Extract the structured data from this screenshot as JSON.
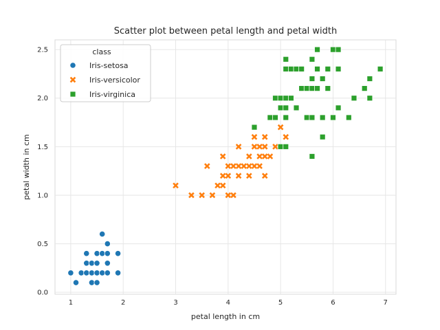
{
  "chart_data": {
    "type": "scatter",
    "title": "Scatter plot between petal length and petal width",
    "xlabel": "petal length in cm",
    "ylabel": "petal width in cm",
    "xlim": [
      0.7,
      7.2
    ],
    "ylim": [
      -0.02,
      2.6
    ],
    "xticks": [
      "1",
      "2",
      "3",
      "4",
      "5",
      "6",
      "7"
    ],
    "yticks": [
      "0.0",
      "0.5",
      "1.0",
      "1.5",
      "2.0",
      "2.5"
    ],
    "grid": true,
    "legend": {
      "title": "class",
      "placement": "top-left"
    },
    "series": [
      {
        "name": "Iris-setosa",
        "marker": "circle",
        "color": "#1f77b4",
        "points": [
          [
            1.0,
            0.2
          ],
          [
            1.1,
            0.1
          ],
          [
            1.2,
            0.2
          ],
          [
            1.3,
            0.2
          ],
          [
            1.3,
            0.3
          ],
          [
            1.3,
            0.4
          ],
          [
            1.4,
            0.1
          ],
          [
            1.4,
            0.2
          ],
          [
            1.4,
            0.3
          ],
          [
            1.5,
            0.1
          ],
          [
            1.5,
            0.2
          ],
          [
            1.5,
            0.3
          ],
          [
            1.5,
            0.4
          ],
          [
            1.6,
            0.2
          ],
          [
            1.6,
            0.4
          ],
          [
            1.6,
            0.6
          ],
          [
            1.7,
            0.2
          ],
          [
            1.7,
            0.3
          ],
          [
            1.7,
            0.4
          ],
          [
            1.7,
            0.5
          ],
          [
            1.9,
            0.2
          ],
          [
            1.9,
            0.4
          ]
        ]
      },
      {
        "name": "Iris-versicolor",
        "marker": "x",
        "color": "#ff7f0e",
        "points": [
          [
            3.0,
            1.1
          ],
          [
            3.3,
            1.0
          ],
          [
            3.5,
            1.0
          ],
          [
            3.6,
            1.3
          ],
          [
            3.7,
            1.0
          ],
          [
            3.8,
            1.1
          ],
          [
            3.9,
            1.1
          ],
          [
            3.9,
            1.2
          ],
          [
            3.9,
            1.4
          ],
          [
            4.0,
            1.0
          ],
          [
            4.0,
            1.2
          ],
          [
            4.0,
            1.3
          ],
          [
            4.1,
            1.0
          ],
          [
            4.1,
            1.3
          ],
          [
            4.2,
            1.2
          ],
          [
            4.2,
            1.3
          ],
          [
            4.2,
            1.5
          ],
          [
            4.3,
            1.3
          ],
          [
            4.4,
            1.2
          ],
          [
            4.4,
            1.3
          ],
          [
            4.4,
            1.4
          ],
          [
            4.5,
            1.3
          ],
          [
            4.5,
            1.5
          ],
          [
            4.5,
            1.6
          ],
          [
            4.6,
            1.3
          ],
          [
            4.6,
            1.4
          ],
          [
            4.6,
            1.5
          ],
          [
            4.7,
            1.2
          ],
          [
            4.7,
            1.4
          ],
          [
            4.7,
            1.5
          ],
          [
            4.7,
            1.6
          ],
          [
            4.8,
            1.4
          ],
          [
            4.8,
            1.8
          ],
          [
            4.9,
            1.5
          ],
          [
            5.0,
            1.7
          ],
          [
            5.1,
            1.6
          ]
        ]
      },
      {
        "name": "Iris-virginica",
        "marker": "square",
        "color": "#2ca02c",
        "points": [
          [
            4.5,
            1.7
          ],
          [
            4.8,
            1.8
          ],
          [
            4.9,
            1.8
          ],
          [
            4.9,
            2.0
          ],
          [
            5.0,
            1.5
          ],
          [
            5.0,
            1.9
          ],
          [
            5.0,
            2.0
          ],
          [
            5.1,
            1.5
          ],
          [
            5.1,
            1.8
          ],
          [
            5.1,
            1.9
          ],
          [
            5.1,
            2.0
          ],
          [
            5.1,
            2.3
          ],
          [
            5.1,
            2.4
          ],
          [
            5.2,
            2.0
          ],
          [
            5.2,
            2.3
          ],
          [
            5.3,
            1.9
          ],
          [
            5.3,
            2.3
          ],
          [
            5.4,
            2.1
          ],
          [
            5.4,
            2.3
          ],
          [
            5.5,
            1.8
          ],
          [
            5.5,
            2.1
          ],
          [
            5.6,
            1.4
          ],
          [
            5.6,
            1.8
          ],
          [
            5.6,
            2.1
          ],
          [
            5.6,
            2.2
          ],
          [
            5.6,
            2.4
          ],
          [
            5.7,
            2.1
          ],
          [
            5.7,
            2.3
          ],
          [
            5.7,
            2.5
          ],
          [
            5.8,
            1.6
          ],
          [
            5.8,
            1.8
          ],
          [
            5.8,
            2.2
          ],
          [
            5.9,
            2.1
          ],
          [
            5.9,
            2.3
          ],
          [
            6.0,
            1.8
          ],
          [
            6.0,
            2.5
          ],
          [
            6.1,
            1.9
          ],
          [
            6.1,
            2.3
          ],
          [
            6.1,
            2.5
          ],
          [
            6.3,
            1.8
          ],
          [
            6.4,
            2.0
          ],
          [
            6.6,
            2.1
          ],
          [
            6.7,
            2.0
          ],
          [
            6.7,
            2.2
          ],
          [
            6.9,
            2.3
          ]
        ]
      }
    ]
  }
}
